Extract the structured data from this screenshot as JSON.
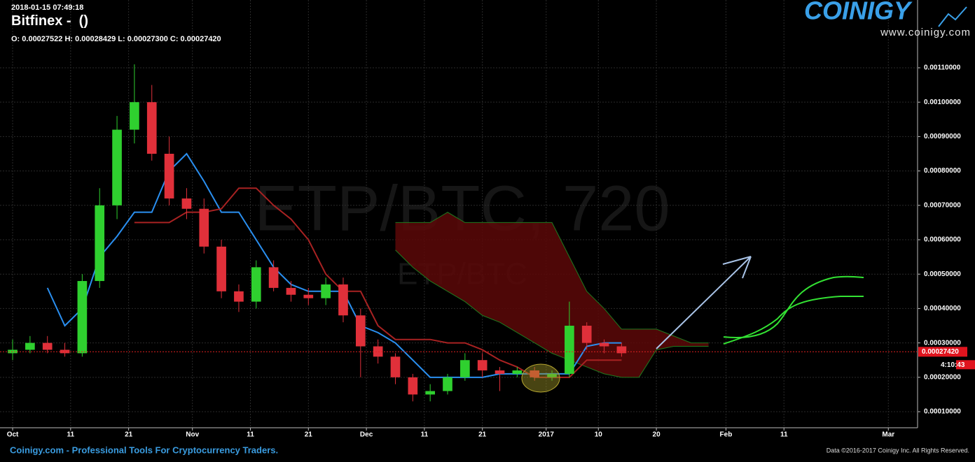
{
  "header": {
    "timestamp": "2018-01-15 07:49:18",
    "title": "Bitfinex -  ()",
    "ohlc": "O: 0.00027522 H: 0.00028429 L: 0.00027300 C: 0.00027420"
  },
  "logo": {
    "name": "COINIGY",
    "url": "www.coinigy.com"
  },
  "watermark": {
    "main": "ETP/BTC, 720",
    "sub": "ETP/BTC"
  },
  "footer": {
    "left": "Coinigy.com - Professional Tools For Cryptocurrency Traders.",
    "right": "Data ©2016-2017 Coinigy Inc. All Rights Reserved."
  },
  "chart_data": {
    "type": "candlestick",
    "x": [
      0,
      3,
      6,
      9,
      12,
      15,
      18,
      21,
      24,
      27,
      30,
      33,
      36,
      39,
      42,
      45,
      48,
      51,
      54,
      57,
      60,
      63,
      66,
      69,
      72,
      75,
      78,
      81,
      84,
      87,
      90,
      93,
      96,
      99,
      102,
      105
    ],
    "open": [
      0.00027,
      0.00028,
      0.0003,
      0.00028,
      0.00027,
      0.00048,
      0.0007,
      0.00092,
      0.001,
      0.00085,
      0.00072,
      0.00069,
      0.00058,
      0.00045,
      0.00042,
      0.00052,
      0.00046,
      0.00044,
      0.00043,
      0.00047,
      0.00038,
      0.00029,
      0.00026,
      0.0002,
      0.00015,
      0.00016,
      0.0002,
      0.00025,
      0.00022,
      0.00021,
      0.00022,
      0.0002,
      0.00021,
      0.00035,
      0.0003,
      0.00029
    ],
    "high": [
      0.00031,
      0.00032,
      0.00032,
      0.0003,
      0.0005,
      0.00075,
      0.00096,
      0.00111,
      0.00105,
      0.0009,
      0.00075,
      0.00072,
      0.0006,
      0.00047,
      0.00054,
      0.00054,
      0.00048,
      0.00046,
      0.00049,
      0.00049,
      0.0004,
      0.00031,
      0.00027,
      0.00021,
      0.00018,
      0.00021,
      0.00027,
      0.00027,
      0.00023,
      0.00023,
      0.00023,
      0.00022,
      0.00042,
      0.00036,
      0.00031,
      0.0003
    ],
    "low": [
      0.00025,
      0.00027,
      0.00027,
      0.00026,
      0.00026,
      0.00046,
      0.00066,
      0.00088,
      0.00083,
      0.0007,
      0.00066,
      0.00056,
      0.00043,
      0.00039,
      0.0004,
      0.00045,
      0.00042,
      0.00041,
      0.00041,
      0.00036,
      0.0002,
      0.00024,
      0.00018,
      0.00013,
      0.00013,
      0.00015,
      0.00019,
      0.0002,
      0.00016,
      0.0002,
      0.00019,
      0.00019,
      0.0002,
      0.00028,
      0.00027,
      0.00026
    ],
    "close": [
      0.00028,
      0.0003,
      0.00028,
      0.00027,
      0.00048,
      0.0007,
      0.00092,
      0.001,
      0.00085,
      0.00072,
      0.00069,
      0.00058,
      0.00045,
      0.00042,
      0.00052,
      0.00046,
      0.00044,
      0.00043,
      0.00047,
      0.00038,
      0.00029,
      0.00026,
      0.0002,
      0.00015,
      0.00016,
      0.0002,
      0.00025,
      0.00022,
      0.00021,
      0.00022,
      0.0002,
      0.00021,
      0.00035,
      0.0003,
      0.00029,
      0.00027
    ],
    "up_color": "#2fd02f",
    "down_color": "#e0303a",
    "lines": [
      {
        "color": "#2a8ff0",
        "values": [
          null,
          null,
          0.00046,
          0.00035,
          0.0004,
          0.00055,
          0.00061,
          0.00068,
          0.00068,
          0.0008,
          0.00085,
          0.00077,
          0.00068,
          0.00068,
          0.0006,
          0.00052,
          0.00047,
          0.00045,
          0.00045,
          0.00045,
          0.00035,
          0.00033,
          0.0003,
          0.00025,
          0.0002,
          0.0002,
          0.0002,
          0.0002,
          0.00021,
          0.00021,
          0.00021,
          0.00021,
          0.00021,
          0.00029,
          0.0003,
          0.0003
        ]
      },
      {
        "color": "#a82222",
        "values": [
          null,
          null,
          null,
          null,
          null,
          null,
          null,
          0.00065,
          0.00065,
          0.00065,
          0.00068,
          0.00068,
          0.00069,
          0.00075,
          0.00075,
          0.0007,
          0.00066,
          0.0006,
          0.0005,
          0.00045,
          0.00045,
          0.00035,
          0.00031,
          0.00031,
          0.00031,
          0.0003,
          0.0003,
          0.00028,
          0.00025,
          0.00023,
          0.0002,
          0.0002,
          0.0002,
          0.00025,
          0.00025,
          0.00025
        ]
      }
    ],
    "cloud": {
      "color": "#5c0808",
      "edge_color": "#1f7a1f",
      "x": [
        66,
        69,
        72,
        75,
        78,
        81,
        84,
        87,
        90,
        93,
        96,
        99,
        102,
        105,
        108,
        111,
        114,
        117,
        120
      ],
      "upper": [
        0.00065,
        0.00065,
        0.00065,
        0.00068,
        0.00065,
        0.00065,
        0.00065,
        0.00065,
        0.00065,
        0.00065,
        0.00055,
        0.00045,
        0.0004,
        0.00034,
        0.00034,
        0.00034,
        0.00032,
        0.0003,
        0.0003
      ],
      "lower": [
        0.00057,
        0.00052,
        0.00048,
        0.00045,
        0.00042,
        0.00038,
        0.00036,
        0.00033,
        0.0003,
        0.00027,
        0.00025,
        0.00023,
        0.00021,
        0.0002,
        0.0002,
        0.00028,
        0.00029,
        0.00029,
        0.00029
      ]
    },
    "last_price": {
      "value": 0.0002742,
      "label": "0.00027420"
    },
    "countdown": "4:10:43",
    "xlim": [
      -0.97,
      156.04
    ],
    "ylim": [
      5.33e-05,
      0.001165
    ],
    "xticks": [
      {
        "value": 0,
        "label": "Oct"
      },
      {
        "value": 10,
        "label": "11"
      },
      {
        "value": 20,
        "label": "21"
      },
      {
        "value": 31,
        "label": "Nov"
      },
      {
        "value": 41,
        "label": "11"
      },
      {
        "value": 51,
        "label": "21"
      },
      {
        "value": 61,
        "label": "Dec"
      },
      {
        "value": 71,
        "label": "11"
      },
      {
        "value": 81,
        "label": "21"
      },
      {
        "value": 92,
        "label": "2017"
      },
      {
        "value": 101,
        "label": "10"
      },
      {
        "value": 111,
        "label": "20"
      },
      {
        "value": 123,
        "label": "Feb"
      },
      {
        "value": 133,
        "label": "11"
      },
      {
        "value": 151,
        "label": "Mar"
      }
    ],
    "yticks": [
      {
        "value": 0.0001,
        "label": "0.00010000"
      },
      {
        "value": 0.0002,
        "label": "0.00020000"
      },
      {
        "value": 0.0003,
        "label": "0.00030000"
      },
      {
        "value": 0.0004,
        "label": "0.00040000"
      },
      {
        "value": 0.0005,
        "label": "0.00050000"
      },
      {
        "value": 0.0006,
        "label": "0.00060000"
      },
      {
        "value": 0.0007,
        "label": "0.00070000"
      },
      {
        "value": 0.0008,
        "label": "0.00080000"
      },
      {
        "value": 0.0009,
        "label": "0.00090000"
      },
      {
        "value": 0.001,
        "label": "0.00100000"
      },
      {
        "value": 0.0011,
        "label": "0.00110000"
      }
    ],
    "grid": true
  }
}
